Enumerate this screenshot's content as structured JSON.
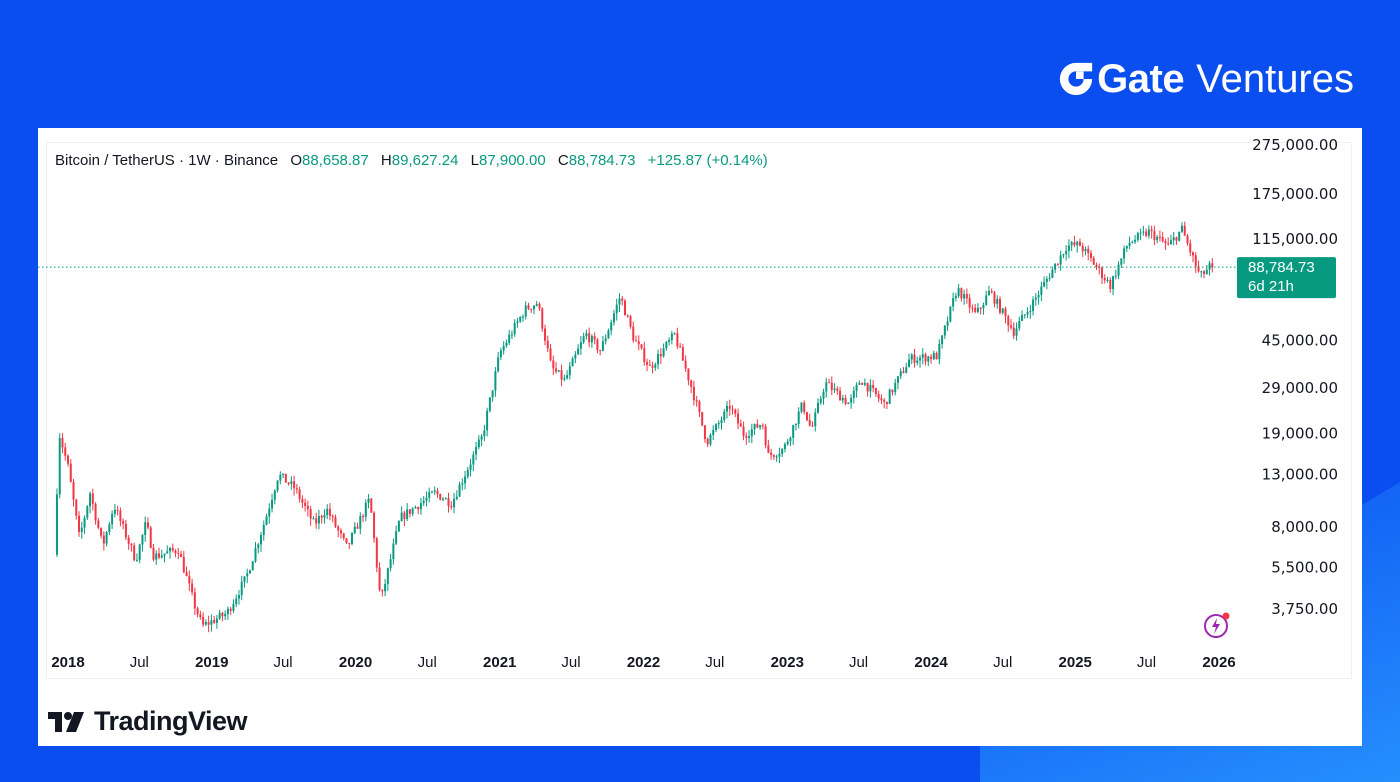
{
  "brand": {
    "name": "Gate",
    "sub": "Ventures"
  },
  "legend": {
    "symbol": "Bitcoin / TetherUS · 1W · Binance",
    "open_label": "O",
    "open": "88,658.87",
    "high_label": "H",
    "high": "89,627.24",
    "low_label": "L",
    "low": "87,900.00",
    "close_label": "C",
    "close": "88,784.73",
    "change": "+125.87 (+0.14%)"
  },
  "price_tag": {
    "price": "88,784.73",
    "countdown": "6d 21h"
  },
  "footer": {
    "logo_text": "TradingView"
  },
  "colors": {
    "up": "#089981",
    "down": "#f23645",
    "background": "#0a4ef0"
  },
  "chart_data": {
    "type": "candlestick",
    "title": "Bitcoin / TetherUS · 1W · Binance",
    "y_scale": "log",
    "y_ticks": [
      {
        "value": 275000,
        "label": "275,000.00"
      },
      {
        "value": 175000,
        "label": "175,000.00"
      },
      {
        "value": 115000,
        "label": "115,000.00"
      },
      {
        "value": 45000,
        "label": "45,000.00"
      },
      {
        "value": 29000,
        "label": "29,000.00"
      },
      {
        "value": 19000,
        "label": "19,000.00"
      },
      {
        "value": 13000,
        "label": "13,000.00"
      },
      {
        "value": 8000,
        "label": "8,000.00"
      },
      {
        "value": 5500,
        "label": "5,500.00"
      },
      {
        "value": 3750,
        "label": "3,750.00"
      }
    ],
    "x_ticks": [
      {
        "date": "2018-01-01",
        "label": "2018",
        "bold": true
      },
      {
        "date": "2018-07-01",
        "label": "Jul",
        "bold": false
      },
      {
        "date": "2019-01-01",
        "label": "2019",
        "bold": true
      },
      {
        "date": "2019-07-01",
        "label": "Jul",
        "bold": false
      },
      {
        "date": "2020-01-01",
        "label": "2020",
        "bold": true
      },
      {
        "date": "2020-07-01",
        "label": "Jul",
        "bold": false
      },
      {
        "date": "2021-01-01",
        "label": "2021",
        "bold": true
      },
      {
        "date": "2021-07-01",
        "label": "Jul",
        "bold": false
      },
      {
        "date": "2022-01-01",
        "label": "2022",
        "bold": true
      },
      {
        "date": "2022-07-01",
        "label": "Jul",
        "bold": false
      },
      {
        "date": "2023-01-01",
        "label": "2023",
        "bold": true
      },
      {
        "date": "2023-07-01",
        "label": "Jul",
        "bold": false
      },
      {
        "date": "2024-01-01",
        "label": "2024",
        "bold": true
      },
      {
        "date": "2024-07-01",
        "label": "Jul",
        "bold": false
      },
      {
        "date": "2025-01-01",
        "label": "2025",
        "bold": true
      },
      {
        "date": "2025-07-01",
        "label": "Jul",
        "bold": false
      },
      {
        "date": "2026-01-01",
        "label": "2026",
        "bold": true
      }
    ],
    "last_price": 88784.73,
    "path": [
      {
        "date": "2017-12-04",
        "price": 6200
      },
      {
        "date": "2017-12-17",
        "price": 19000
      },
      {
        "date": "2018-01-08",
        "price": 14000
      },
      {
        "date": "2018-02-06",
        "price": 7200
      },
      {
        "date": "2018-03-05",
        "price": 11000
      },
      {
        "date": "2018-04-06",
        "price": 6700
      },
      {
        "date": "2018-05-05",
        "price": 9800
      },
      {
        "date": "2018-06-29",
        "price": 5900
      },
      {
        "date": "2018-07-25",
        "price": 8300
      },
      {
        "date": "2018-08-14",
        "price": 6100
      },
      {
        "date": "2018-10-15",
        "price": 6500
      },
      {
        "date": "2018-11-25",
        "price": 3900
      },
      {
        "date": "2018-12-15",
        "price": 3200
      },
      {
        "date": "2019-02-15",
        "price": 3600
      },
      {
        "date": "2019-04-05",
        "price": 5000
      },
      {
        "date": "2019-05-25",
        "price": 8700
      },
      {
        "date": "2019-06-26",
        "price": 13000
      },
      {
        "date": "2019-08-06",
        "price": 11500
      },
      {
        "date": "2019-09-25",
        "price": 8200
      },
      {
        "date": "2019-10-26",
        "price": 9500
      },
      {
        "date": "2019-12-17",
        "price": 6600
      },
      {
        "date": "2020-02-13",
        "price": 10400
      },
      {
        "date": "2020-03-12",
        "price": 4000
      },
      {
        "date": "2020-04-30",
        "price": 8700
      },
      {
        "date": "2020-07-27",
        "price": 11000
      },
      {
        "date": "2020-09-08",
        "price": 10000
      },
      {
        "date": "2020-11-25",
        "price": 18500
      },
      {
        "date": "2021-01-08",
        "price": 40000
      },
      {
        "date": "2021-03-13",
        "price": 60000
      },
      {
        "date": "2021-04-14",
        "price": 64000
      },
      {
        "date": "2021-05-19",
        "price": 35000
      },
      {
        "date": "2021-06-22",
        "price": 31000
      },
      {
        "date": "2021-08-14",
        "price": 48000
      },
      {
        "date": "2021-09-21",
        "price": 41000
      },
      {
        "date": "2021-11-10",
        "price": 68000
      },
      {
        "date": "2021-12-14",
        "price": 46000
      },
      {
        "date": "2022-01-24",
        "price": 35000
      },
      {
        "date": "2022-03-28",
        "price": 47500
      },
      {
        "date": "2022-05-12",
        "price": 28500
      },
      {
        "date": "2022-06-18",
        "price": 17600
      },
      {
        "date": "2022-08-15",
        "price": 24500
      },
      {
        "date": "2022-09-20",
        "price": 18800
      },
      {
        "date": "2022-11-06",
        "price": 21000
      },
      {
        "date": "2022-11-21",
        "price": 15500
      },
      {
        "date": "2022-12-30",
        "price": 16500
      },
      {
        "date": "2023-02-16",
        "price": 25000
      },
      {
        "date": "2023-03-10",
        "price": 19600
      },
      {
        "date": "2023-04-14",
        "price": 30500
      },
      {
        "date": "2023-06-15",
        "price": 25000
      },
      {
        "date": "2023-07-13",
        "price": 31500
      },
      {
        "date": "2023-09-11",
        "price": 25000
      },
      {
        "date": "2023-11-15",
        "price": 38000
      },
      {
        "date": "2024-01-23",
        "price": 39000
      },
      {
        "date": "2024-03-14",
        "price": 73000
      },
      {
        "date": "2024-05-01",
        "price": 57000
      },
      {
        "date": "2024-06-05",
        "price": 71000
      },
      {
        "date": "2024-08-05",
        "price": 49000
      },
      {
        "date": "2024-09-28",
        "price": 66000
      },
      {
        "date": "2024-12-17",
        "price": 108000
      },
      {
        "date": "2025-01-20",
        "price": 109000
      },
      {
        "date": "2025-04-07",
        "price": 75000
      },
      {
        "date": "2025-05-22",
        "price": 111000
      },
      {
        "date": "2025-07-14",
        "price": 123000
      },
      {
        "date": "2025-09-01",
        "price": 108000
      },
      {
        "date": "2025-10-06",
        "price": 126000
      },
      {
        "date": "2025-11-21",
        "price": 81000
      },
      {
        "date": "2025-12-15",
        "price": 88784.73
      }
    ]
  }
}
